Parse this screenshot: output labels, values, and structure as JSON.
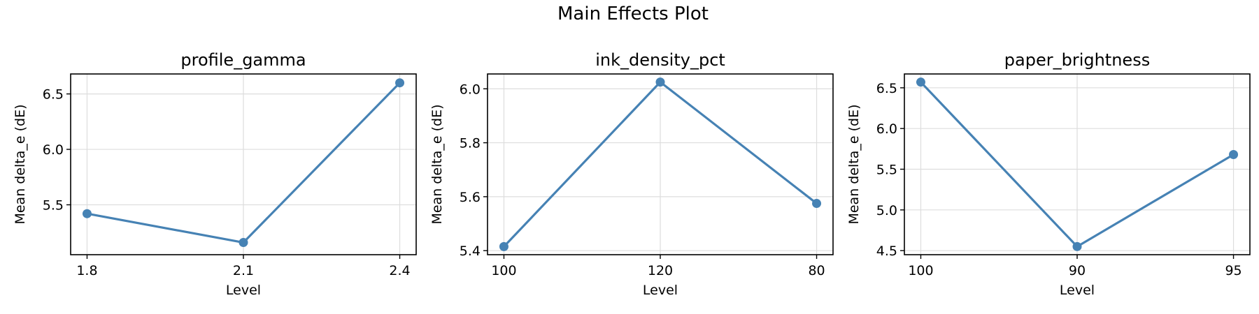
{
  "figure_title": "Main Effects Plot",
  "colors": {
    "line": "#4682b4",
    "grid": "#dddddd",
    "axis": "#000000",
    "background": "#ffffff"
  },
  "chart_data": [
    {
      "type": "line",
      "title": "profile_gamma",
      "xlabel": "Level",
      "ylabel": "Mean delta_e (dE)",
      "categories": [
        "1.8",
        "2.1",
        "2.4"
      ],
      "values": [
        5.42,
        5.16,
        6.6
      ],
      "ylim": [
        5.05,
        6.68
      ],
      "yticks": [
        5.5,
        6.0,
        6.5
      ],
      "ytick_labels": [
        "5.5",
        "6.0",
        "6.5"
      ],
      "grid": true
    },
    {
      "type": "line",
      "title": "ink_density_pct",
      "xlabel": "Level",
      "ylabel": "Mean delta_e (dE)",
      "categories": [
        "100",
        "120",
        "80"
      ],
      "values": [
        5.415,
        6.025,
        5.575
      ],
      "ylim": [
        5.385,
        6.055
      ],
      "yticks": [
        5.4,
        5.6,
        5.8,
        6.0
      ],
      "ytick_labels": [
        "5.4",
        "5.6",
        "5.8",
        "6.0"
      ],
      "grid": true
    },
    {
      "type": "line",
      "title": "paper_brightness",
      "xlabel": "Level",
      "ylabel": "Mean delta_e (dE)",
      "categories": [
        "100",
        "90",
        "95"
      ],
      "values": [
        6.57,
        4.55,
        5.68
      ],
      "ylim": [
        4.45,
        6.67
      ],
      "yticks": [
        4.5,
        5.0,
        5.5,
        6.0,
        6.5
      ],
      "ytick_labels": [
        "4.5",
        "5.0",
        "5.5",
        "6.0",
        "6.5"
      ],
      "grid": true
    }
  ]
}
